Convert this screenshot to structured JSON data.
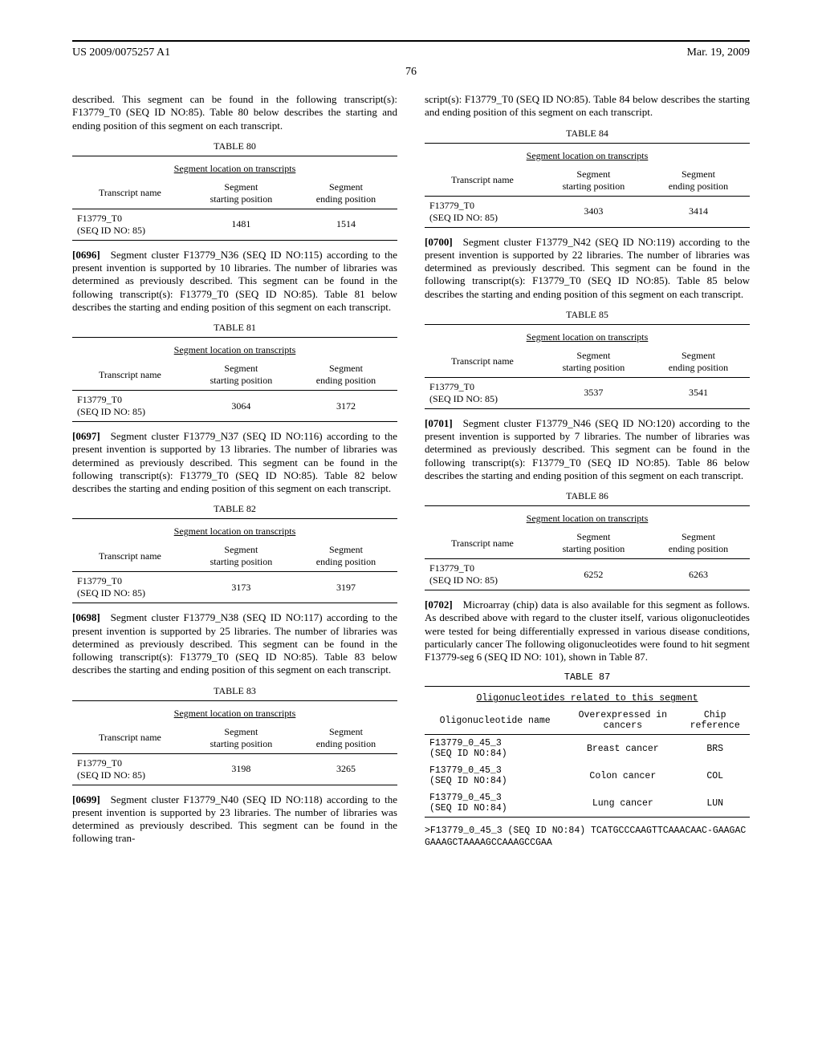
{
  "header": {
    "left": "US 2009/0075257 A1",
    "right": "Mar. 19, 2009",
    "page_number": "76"
  },
  "left": {
    "para_top": "described. This segment can be found in the following transcript(s): F13779_T0 (SEQ ID NO:85). Table 80 below describes the starting and ending position of this segment on each transcript.",
    "t80": {
      "label": "TABLE 80",
      "caption": "Segment location on transcripts",
      "h1": "Transcript name",
      "h2": "Segment\nstarting position",
      "h3": "Segment\nending position",
      "r1c1": "F13779_T0\n(SEQ ID NO: 85)",
      "r1c2": "1481",
      "r1c3": "1514"
    },
    "p0696_num": "[0696]",
    "p0696": " Segment cluster F13779_N36 (SEQ ID NO:115) according to the present invention is supported by 10 libraries. The number of libraries was determined as previously described. This segment can be found in the following transcript(s): F13779_T0 (SEQ ID NO:85). Table 81 below describes the starting and ending position of this segment on each transcript.",
    "t81": {
      "label": "TABLE 81",
      "caption": "Segment location on transcripts",
      "h1": "Transcript name",
      "h2": "Segment\nstarting position",
      "h3": "Segment\nending position",
      "r1c1": "F13779_T0\n(SEQ ID NO: 85)",
      "r1c2": "3064",
      "r1c3": "3172"
    },
    "p0697_num": "[0697]",
    "p0697": " Segment cluster F13779_N37 (SEQ ID NO:116) according to the present invention is supported by 13 libraries. The number of libraries was determined as previously described. This segment can be found in the following transcript(s): F13779_T0 (SEQ ID NO:85). Table 82 below describes the starting and ending position of this segment on each transcript.",
    "t82": {
      "label": "TABLE 82",
      "caption": "Segment location on transcripts",
      "h1": "Transcript name",
      "h2": "Segment\nstarting position",
      "h3": "Segment\nending position",
      "r1c1": "F13779_T0\n(SEQ ID NO: 85)",
      "r1c2": "3173",
      "r1c3": "3197"
    },
    "p0698_num": "[0698]",
    "p0698": " Segment cluster F13779_N38 (SEQ ID NO:117) according to the present invention is supported by 25 libraries. The number of libraries was determined as previously described. This segment can be found in the following transcript(s): F13779_T0 (SEQ ID NO:85). Table 83 below describes the starting and ending position of this segment on each transcript.",
    "t83": {
      "label": "TABLE 83",
      "caption": "Segment location on transcripts",
      "h1": "Transcript name",
      "h2": "Segment\nstarting position",
      "h3": "Segment\nending position",
      "r1c1": "F13779_T0\n(SEQ ID NO: 85)",
      "r1c2": "3198",
      "r1c3": "3265"
    },
    "p0699_num": "[0699]",
    "p0699": " Segment cluster F13779_N40 (SEQ ID NO:118) according to the present invention is supported by 23 libraries. The number of libraries was determined as previously described. This segment can be found in the following tran-"
  },
  "right": {
    "para_top": "script(s): F13779_T0 (SEQ ID NO:85). Table 84 below describes the starting and ending position of this segment on each transcript.",
    "t84": {
      "label": "TABLE 84",
      "caption": "Segment location on transcripts",
      "h1": "Transcript name",
      "h2": "Segment\nstarting position",
      "h3": "Segment\nending position",
      "r1c1": "F13779_T0\n(SEQ ID NO: 85)",
      "r1c2": "3403",
      "r1c3": "3414"
    },
    "p0700_num": "[0700]",
    "p0700": " Segment cluster F13779_N42 (SEQ ID NO:119) according to the present invention is supported by 22 libraries. The number of libraries was determined as previously described. This segment can be found in the following transcript(s): F13779_T0 (SEQ ID NO:85). Table 85 below describes the starting and ending position of this segment on each transcript.",
    "t85": {
      "label": "TABLE 85",
      "caption": "Segment location on transcripts",
      "h1": "Transcript name",
      "h2": "Segment\nstarting position",
      "h3": "Segment\nending position",
      "r1c1": "F13779_T0\n(SEQ ID NO: 85)",
      "r1c2": "3537",
      "r1c3": "3541"
    },
    "p0701_num": "[0701]",
    "p0701": " Segment cluster F13779_N46 (SEQ ID NO:120) according to the present invention is supported by 7 libraries. The number of libraries was determined as previously described. This segment can be found in the following transcript(s): F13779_T0 (SEQ ID NO:85). Table 86 below describes the starting and ending position of this segment on each transcript.",
    "t86": {
      "label": "TABLE 86",
      "caption": "Segment location on transcripts",
      "h1": "Transcript name",
      "h2": "Segment\nstarting position",
      "h3": "Segment\nending position",
      "r1c1": "F13779_T0\n(SEQ ID NO: 85)",
      "r1c2": "6252",
      "r1c3": "6263"
    },
    "p0702_num": "[0702]",
    "p0702": " Microarray (chip) data is also available for this segment as follows. As described above with regard to the cluster itself, various oligonucleotides were tested for being differentially expressed in various disease conditions, particularly cancer The following oligonucleotides were found to hit segment F13779-seg 6 (SEQ ID NO: 101), shown in Table 87.",
    "t87": {
      "label": "TABLE 87",
      "caption": "Oligonucleotides related to this segment",
      "h1": "Oligonucleotide name",
      "h2": "Overexpressed in\ncancers",
      "h3": "Chip\nreference",
      "r1c1": "F13779_0_45_3\n(SEQ ID NO:84)",
      "r1c2": "Breast cancer",
      "r1c3": "BRS",
      "r2c1": "F13779_0_45_3\n(SEQ ID NO:84)",
      "r2c2": "Colon cancer",
      "r2c3": "COL",
      "r3c1": "F13779_0_45_3\n(SEQ ID NO:84)",
      "r3c2": "Lung cancer",
      "r3c3": "LUN"
    },
    "seq": ">F13779_0_45_3 (SEQ ID NO:84) TCATGCCCAAGTTCAAACAAC-GAAGACGAAAGCTAAAAGCCAAAGCCGAA"
  }
}
